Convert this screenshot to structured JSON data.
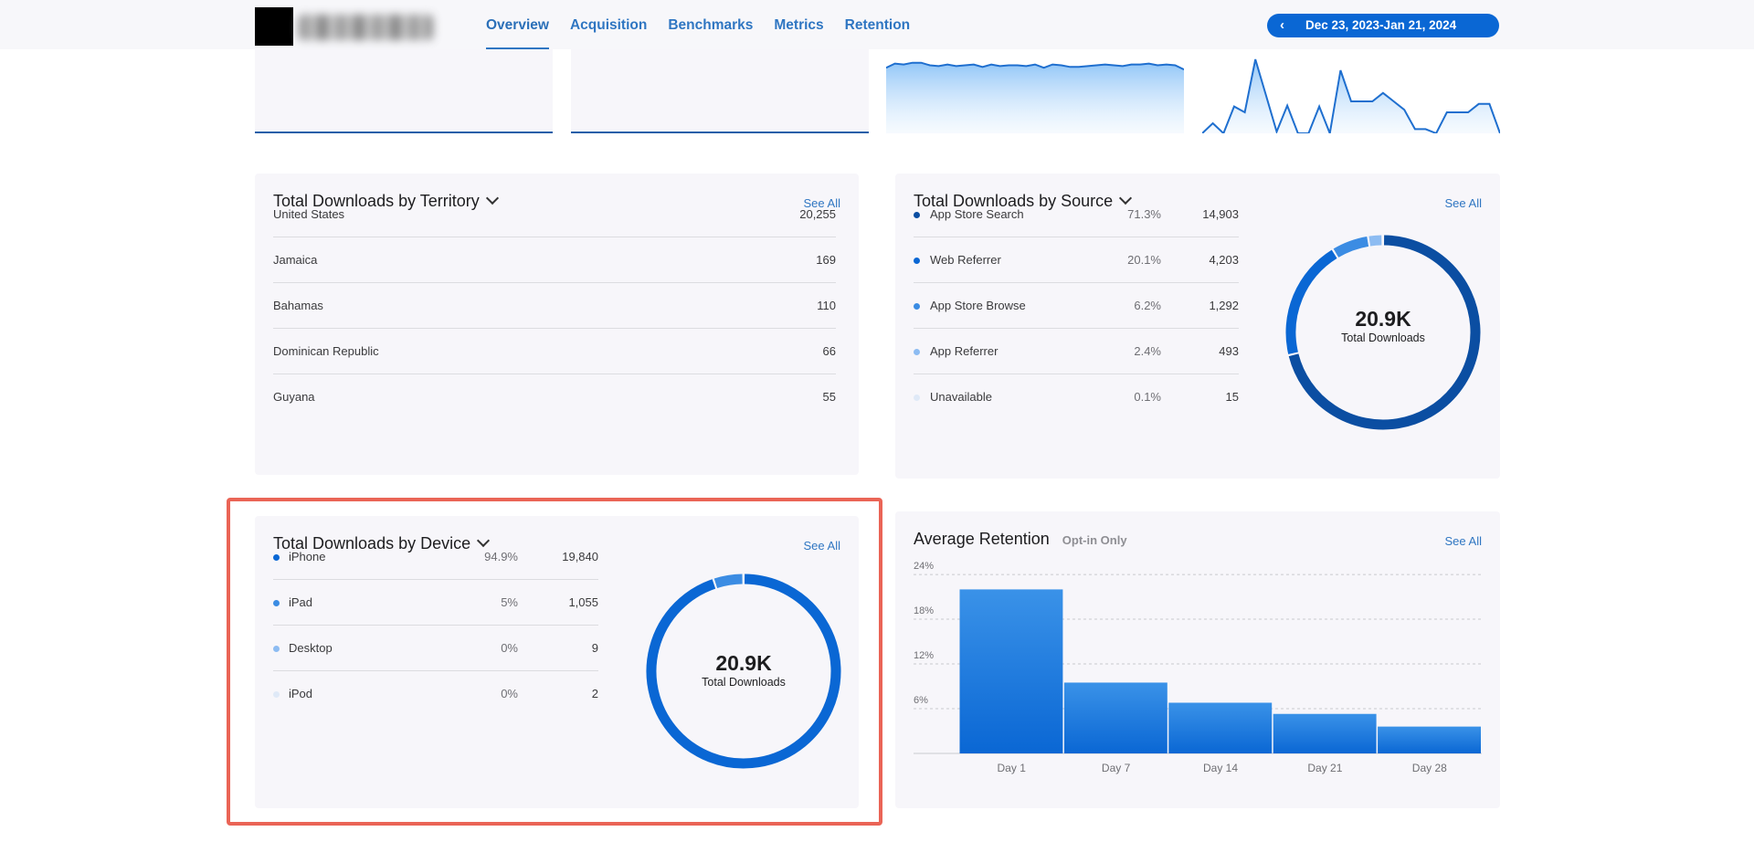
{
  "header": {
    "tabs": [
      {
        "label": "Overview",
        "active": true
      },
      {
        "label": "Acquisition",
        "active": false
      },
      {
        "label": "Benchmarks",
        "active": false
      },
      {
        "label": "Metrics",
        "active": false
      },
      {
        "label": "Retention",
        "active": false
      }
    ],
    "date_range": "Dec 23, 2023-Jan 21, 2024",
    "date_prev_icon": "chevron-left-icon"
  },
  "territory": {
    "title": "Total Downloads by Territory",
    "see_all": "See All",
    "rows": [
      {
        "name": "United States",
        "value": "20,255"
      },
      {
        "name": "Jamaica",
        "value": "169"
      },
      {
        "name": "Bahamas",
        "value": "110"
      },
      {
        "name": "Dominican Republic",
        "value": "66"
      },
      {
        "name": "Guyana",
        "value": "55"
      }
    ]
  },
  "source": {
    "title": "Total Downloads by Source",
    "see_all": "See All",
    "total": "20.9K",
    "total_label": "Total Downloads",
    "rows": [
      {
        "name": "App Store Search",
        "pct": "71.3%",
        "value": "14,903",
        "share": 71.3,
        "color": "#0b4ea2"
      },
      {
        "name": "Web Referrer",
        "pct": "20.1%",
        "value": "4,203",
        "share": 20.1,
        "color": "#0a67d4"
      },
      {
        "name": "App Store Browse",
        "pct": "6.2%",
        "value": "1,292",
        "share": 6.2,
        "color": "#3b8ce3"
      },
      {
        "name": "App Referrer",
        "pct": "2.4%",
        "value": "493",
        "share": 2.4,
        "color": "#8dbcf2"
      },
      {
        "name": "Unavailable",
        "pct": "0.1%",
        "value": "15",
        "share": 0.1,
        "color": "#dfe9f7"
      }
    ]
  },
  "device": {
    "title": "Total Downloads by Device",
    "see_all": "See All",
    "total": "20.9K",
    "total_label": "Total Downloads",
    "rows": [
      {
        "name": "iPhone",
        "pct": "94.9%",
        "value": "19,840",
        "share": 94.9,
        "color": "#0a67d4"
      },
      {
        "name": "iPad",
        "pct": "5%",
        "value": "1,055",
        "share": 5.0,
        "color": "#3b8ce3"
      },
      {
        "name": "Desktop",
        "pct": "0%",
        "value": "9",
        "share": 0.05,
        "color": "#8dbcf2"
      },
      {
        "name": "iPod",
        "pct": "0%",
        "value": "2",
        "share": 0.01,
        "color": "#dfe9f7"
      }
    ]
  },
  "retention": {
    "title": "Average Retention",
    "subtitle": "Opt-in Only",
    "see_all": "See All",
    "chart_data": {
      "type": "bar",
      "categories": [
        "Day 1",
        "Day 7",
        "Day 14",
        "Day 21",
        "Day 28"
      ],
      "values": [
        22.0,
        9.5,
        6.8,
        5.3,
        3.6
      ],
      "y_ticks": [
        "24%",
        "18%",
        "12%",
        "6%"
      ],
      "ylim": [
        0,
        24.5
      ],
      "grid": true,
      "color": "#1a78df"
    }
  },
  "sparklines": {
    "chart_data": [
      {
        "type": "area",
        "values": [
          78,
          83,
          82,
          84,
          84,
          81,
          80,
          82,
          80,
          81,
          82,
          79,
          82,
          80,
          81,
          81,
          80,
          82,
          78,
          82,
          81,
          79,
          79,
          80,
          81,
          82,
          81,
          80,
          82,
          82,
          83,
          81,
          82,
          81,
          76
        ],
        "color": "#1f6fcf"
      },
      {
        "type": "area",
        "values": [
          0,
          12,
          0,
          32,
          25,
          88,
          45,
          2,
          33,
          0,
          0,
          32,
          0,
          75,
          38,
          38,
          38,
          48,
          38,
          28,
          5,
          5,
          0,
          25,
          25,
          25,
          35,
          35,
          0
        ],
        "color": "#1f6fcf"
      }
    ]
  }
}
